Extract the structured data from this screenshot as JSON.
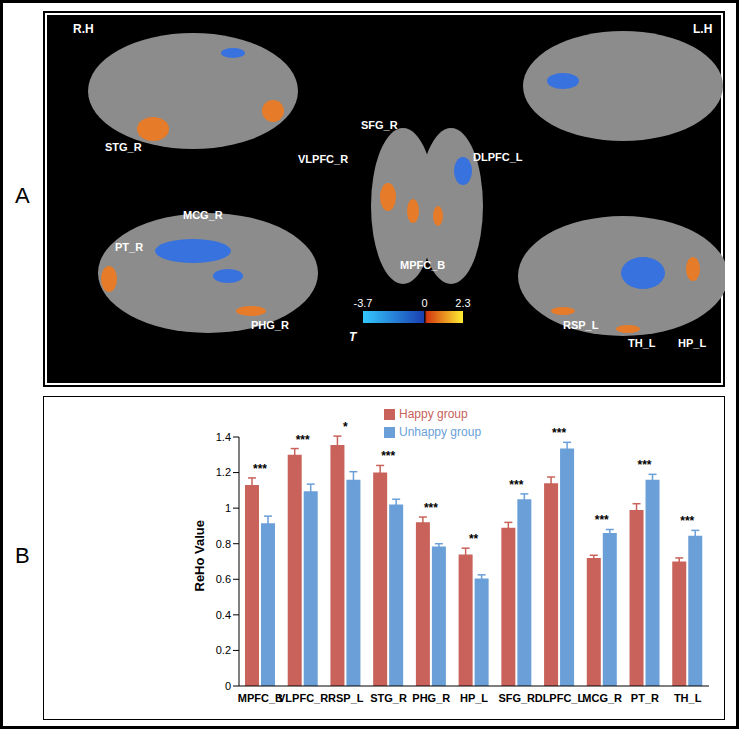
{
  "panel_labels": [
    "A",
    "B"
  ],
  "panel_a": {
    "hemisphere_labels": [
      "R.H",
      "L.H"
    ],
    "region_labels": [
      "STG_R",
      "SFG_R",
      "VLPFC_R",
      "DLPFC_L",
      "MCG_R",
      "PT_R",
      "MPFC_B",
      "PHG_R",
      "RSP_L",
      "TH_L",
      "HP_L"
    ],
    "colorbar": {
      "label": "T",
      "range": [
        -3.7,
        2.3
      ],
      "ticks": [
        -3.7,
        0,
        2.3
      ]
    }
  },
  "chart_data": {
    "type": "bar",
    "y_label": "ReHo Value",
    "categories": [
      "MPFC_B",
      "VLPFC_R",
      "RSP_L",
      "STG_R",
      "PHG_R",
      "HP_L",
      "SFG_R",
      "DLPFC_L",
      "MCG_R",
      "PT_R",
      "TH_L"
    ],
    "series": [
      {
        "name": "Happy group",
        "color": "#c8625a",
        "values": [
          1.13,
          1.3,
          1.355,
          1.2,
          0.92,
          0.74,
          0.89,
          1.14,
          0.72,
          0.99,
          0.7
        ],
        "errors": [
          0.04,
          0.035,
          0.05,
          0.04,
          0.03,
          0.035,
          0.03,
          0.035,
          0.015,
          0.035,
          0.02
        ]
      },
      {
        "name": "Unhappy group",
        "color": "#6a9fd8",
        "values": [
          0.915,
          1.095,
          1.16,
          1.02,
          0.785,
          0.605,
          1.05,
          1.335,
          0.86,
          1.16,
          0.845
        ],
        "errors": [
          0.04,
          0.04,
          0.045,
          0.03,
          0.015,
          0.02,
          0.03,
          0.035,
          0.02,
          0.03,
          0.03
        ]
      }
    ],
    "significance": [
      "***",
      "***",
      "*",
      "***",
      "***",
      "**",
      "***",
      "***",
      "***",
      "***",
      "***"
    ],
    "ylim": [
      0,
      1.4
    ],
    "yticks": [
      0,
      0.2,
      0.4,
      0.6,
      0.8,
      1,
      1.2,
      1.4
    ],
    "grid": false,
    "legend": "top"
  }
}
